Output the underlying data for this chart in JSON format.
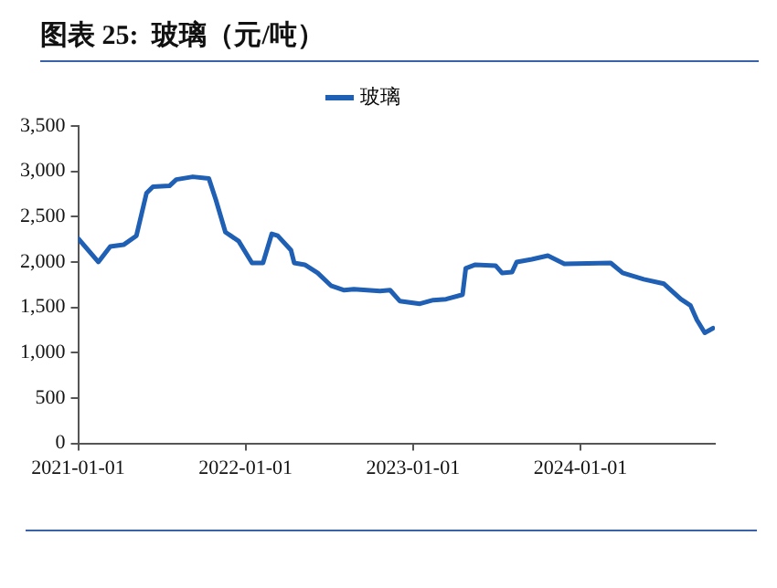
{
  "chart_data": {
    "type": "line",
    "title": "图表 25:  玻璃（元/吨）",
    "x": [
      "2021-01-01",
      "2021-02-14",
      "2021-03-12",
      "2021-04-10",
      "2021-05-08",
      "2021-05-30",
      "2021-06-13",
      "2021-07-19",
      "2021-08-03",
      "2021-09-08",
      "2021-10-13",
      "2021-10-28",
      "2021-11-18",
      "2021-12-17",
      "2022-01-15",
      "2022-02-08",
      "2022-02-27",
      "2022-03-12",
      "2022-04-10",
      "2022-04-17",
      "2022-05-10",
      "2022-06-07",
      "2022-07-06",
      "2022-08-04",
      "2022-08-25",
      "2022-10-21",
      "2022-11-12",
      "2022-12-03",
      "2023-01-16",
      "2023-02-14",
      "2023-03-14",
      "2023-04-19",
      "2023-04-26",
      "2023-05-17",
      "2023-06-30",
      "2023-07-14",
      "2023-08-05",
      "2023-08-15",
      "2023-09-17",
      "2023-10-22",
      "2023-11-27",
      "2024-03-07",
      "2024-04-02",
      "2024-05-18",
      "2024-07-01",
      "2024-08-07",
      "2024-08-28",
      "2024-09-11",
      "2024-09-28",
      "2024-10-16"
    ],
    "series": [
      {
        "name": "玻璃",
        "color": "#1f5fb4",
        "values": [
          2260,
          2000,
          2170,
          2190,
          2290,
          2760,
          2830,
          2840,
          2910,
          2940,
          2920,
          2690,
          2330,
          2230,
          1990,
          1990,
          2310,
          2290,
          2130,
          1990,
          1970,
          1880,
          1740,
          1690,
          1700,
          1680,
          1690,
          1570,
          1540,
          1580,
          1590,
          1640,
          1930,
          1970,
          1960,
          1880,
          1890,
          2000,
          2030,
          2070,
          1980,
          1990,
          1880,
          1810,
          1760,
          1590,
          1520,
          1360,
          1220,
          1270
        ]
      }
    ],
    "xlim": [
      "2021-01-01",
      "2024-10-20"
    ],
    "xticks": [
      "2021-01-01",
      "2022-01-01",
      "2023-01-01",
      "2024-01-01"
    ],
    "ylim": [
      0,
      3500
    ],
    "yticks": [
      0,
      500,
      {
        "value": 1000,
        "label": "1,000"
      },
      {
        "value": 1500,
        "label": "1,500"
      },
      {
        "value": 2000,
        "label": "2,000"
      },
      {
        "value": 2500,
        "label": "2,500"
      },
      {
        "value": 3000,
        "label": "3,000"
      },
      {
        "value": 3500,
        "label": "3,500"
      }
    ],
    "grid": false,
    "legend": "top",
    "marker": "none",
    "line_style": "solid"
  }
}
